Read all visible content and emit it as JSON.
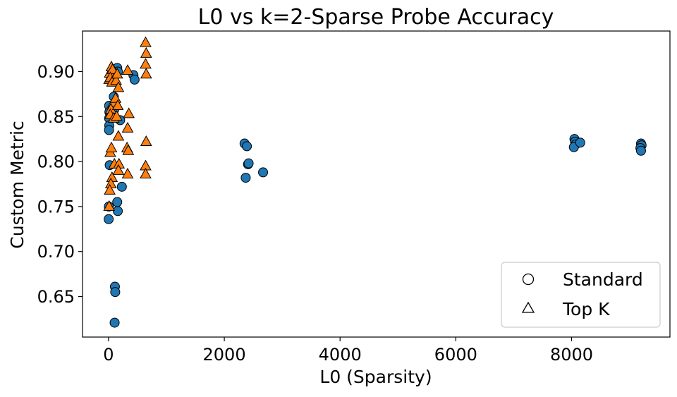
{
  "chart_data": {
    "type": "scatter",
    "title": "L0 vs k=2-Sparse Probe Accuracy",
    "xlabel": "L0 (Sparsity)",
    "ylabel": "Custom Metric",
    "xlim": [
      -450,
      9700
    ],
    "ylim": [
      0.605,
      0.945
    ],
    "xticks": [
      0,
      2000,
      4000,
      6000,
      8000
    ],
    "xtick_labels": [
      "0",
      "2000",
      "4000",
      "6000",
      "8000"
    ],
    "yticks": [
      0.65,
      0.7,
      0.75,
      0.8,
      0.85,
      0.9
    ],
    "ytick_labels": [
      "0.65",
      "0.70",
      "0.75",
      "0.80",
      "0.85",
      "0.90"
    ],
    "grid": false,
    "legend_position": "lower-right",
    "series": [
      {
        "name": "Standard",
        "marker": "circle",
        "color": "#1f77b4",
        "points": [
          [
            10,
            0.862
          ],
          [
            15,
            0.855
          ],
          [
            10,
            0.848
          ],
          [
            12,
            0.84
          ],
          [
            8,
            0.835
          ],
          [
            20,
            0.796
          ],
          [
            5,
            0.75
          ],
          [
            2,
            0.736
          ],
          [
            60,
            0.898
          ],
          [
            70,
            0.894
          ],
          [
            90,
            0.872
          ],
          [
            100,
            0.858
          ],
          [
            110,
            0.661
          ],
          [
            115,
            0.655
          ],
          [
            105,
            0.621
          ],
          [
            150,
            0.904
          ],
          [
            160,
            0.9
          ],
          [
            200,
            0.846
          ],
          [
            150,
            0.755
          ],
          [
            160,
            0.745
          ],
          [
            230,
            0.772
          ],
          [
            430,
            0.896
          ],
          [
            450,
            0.891
          ],
          [
            2350,
            0.82
          ],
          [
            2390,
            0.817
          ],
          [
            2410,
            0.797
          ],
          [
            2420,
            0.798
          ],
          [
            2370,
            0.782
          ],
          [
            2670,
            0.788
          ],
          [
            8050,
            0.825
          ],
          [
            8060,
            0.822
          ],
          [
            8070,
            0.819
          ],
          [
            8040,
            0.816
          ],
          [
            8150,
            0.821
          ],
          [
            9200,
            0.82
          ],
          [
            9210,
            0.818
          ],
          [
            9190,
            0.815
          ],
          [
            9200,
            0.812
          ]
        ]
      },
      {
        "name": "Top K",
        "marker": "triangle",
        "color": "#ff7f0e",
        "points": [
          [
            10,
            0.891
          ],
          [
            20,
            0.898
          ],
          [
            50,
            0.905
          ],
          [
            70,
            0.902
          ],
          [
            30,
            0.893
          ],
          [
            60,
            0.888
          ],
          [
            80,
            0.865
          ],
          [
            40,
            0.858
          ],
          [
            30,
            0.852
          ],
          [
            90,
            0.848
          ],
          [
            30,
            0.81
          ],
          [
            50,
            0.815
          ],
          [
            60,
            0.782
          ],
          [
            40,
            0.775
          ],
          [
            20,
            0.768
          ],
          [
            10,
            0.75
          ],
          [
            120,
            0.87
          ],
          [
            100,
            0.797
          ],
          [
            130,
            0.89
          ],
          [
            150,
            0.897
          ],
          [
            170,
            0.882
          ],
          [
            160,
            0.862
          ],
          [
            140,
            0.85
          ],
          [
            170,
            0.828
          ],
          [
            180,
            0.797
          ],
          [
            170,
            0.79
          ],
          [
            330,
            0.901
          ],
          [
            350,
            0.853
          ],
          [
            330,
            0.837
          ],
          [
            320,
            0.815
          ],
          [
            340,
            0.812
          ],
          [
            330,
            0.786
          ],
          [
            640,
            0.932
          ],
          [
            650,
            0.92
          ],
          [
            640,
            0.908
          ],
          [
            650,
            0.897
          ],
          [
            650,
            0.822
          ],
          [
            640,
            0.795
          ],
          [
            640,
            0.786
          ]
        ]
      }
    ]
  }
}
